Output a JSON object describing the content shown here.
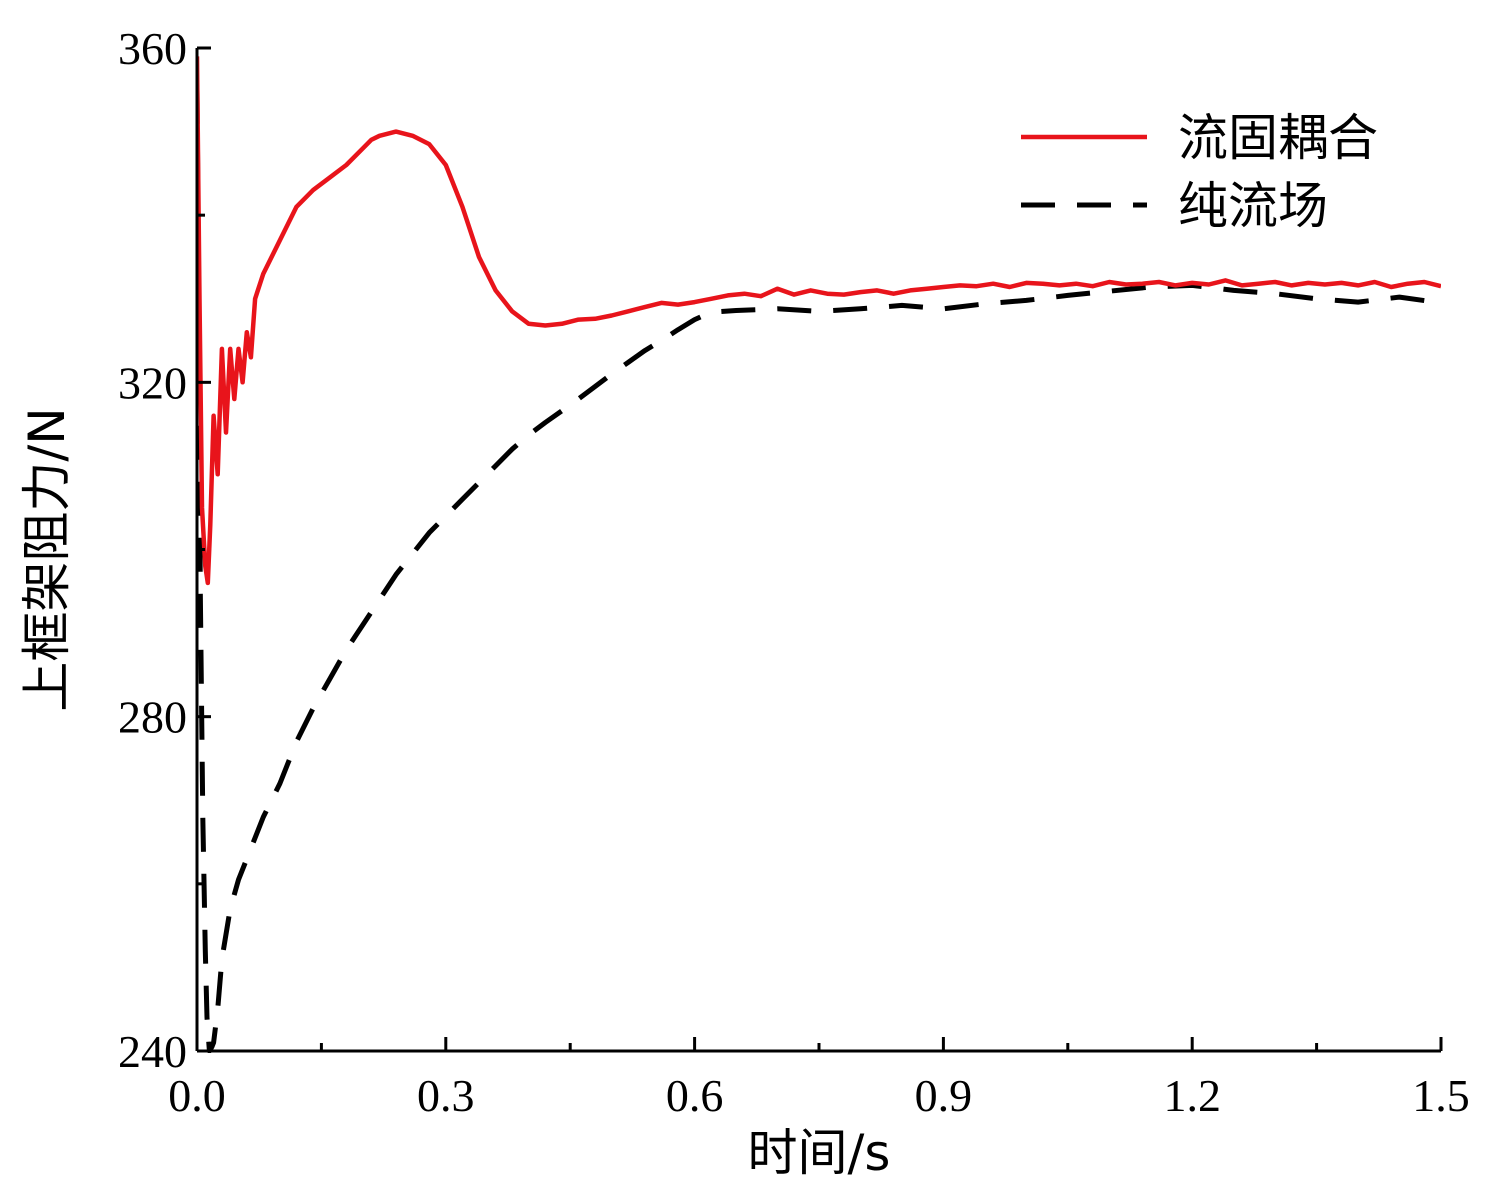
{
  "chart_data": {
    "type": "line",
    "xlabel": "时间/s",
    "ylabel": "上框架阻力/N",
    "xlim": [
      0,
      1.5
    ],
    "ylim": [
      240,
      360
    ],
    "xticks": [
      0.0,
      0.3,
      0.6,
      0.9,
      1.2,
      1.5
    ],
    "xtick_labels": [
      "0.0",
      "0.3",
      "0.6",
      "0.9",
      "1.2",
      "1.5"
    ],
    "yticks": [
      240,
      280,
      320,
      360
    ],
    "ytick_labels": [
      "240",
      "280",
      "320",
      "360"
    ],
    "grid": false,
    "legend_position": "top-right",
    "series": [
      {
        "name": "流固耦合",
        "color": "#e8141b",
        "style": "solid",
        "x": [
          0.0,
          0.003,
          0.006,
          0.01,
          0.013,
          0.016,
          0.02,
          0.025,
          0.03,
          0.035,
          0.04,
          0.045,
          0.05,
          0.055,
          0.06,
          0.065,
          0.07,
          0.08,
          0.09,
          0.1,
          0.11,
          0.12,
          0.14,
          0.16,
          0.18,
          0.2,
          0.21,
          0.22,
          0.24,
          0.26,
          0.28,
          0.3,
          0.32,
          0.34,
          0.36,
          0.38,
          0.4,
          0.42,
          0.44,
          0.46,
          0.48,
          0.5,
          0.52,
          0.54,
          0.56,
          0.58,
          0.6,
          0.62,
          0.64,
          0.66,
          0.68,
          0.7,
          0.72,
          0.74,
          0.76,
          0.78,
          0.8,
          0.82,
          0.84,
          0.86,
          0.88,
          0.9,
          0.92,
          0.94,
          0.96,
          0.98,
          1.0,
          1.02,
          1.04,
          1.06,
          1.08,
          1.1,
          1.12,
          1.14,
          1.16,
          1.18,
          1.2,
          1.22,
          1.24,
          1.26,
          1.28,
          1.3,
          1.32,
          1.34,
          1.36,
          1.38,
          1.4,
          1.42,
          1.44,
          1.46,
          1.48,
          1.5
        ],
        "values": [
          359,
          330,
          305,
          298,
          296,
          303,
          316,
          309,
          324,
          314,
          324,
          318,
          324,
          320,
          326,
          323,
          330,
          333,
          335,
          337,
          339,
          341,
          343,
          344.5,
          346,
          348,
          349,
          349.5,
          350,
          349.5,
          348.5,
          346,
          341,
          335,
          331,
          328.5,
          327,
          326.8,
          327,
          327.5,
          327.6,
          328,
          328.5,
          329,
          329.5,
          329.3,
          329.6,
          330,
          330.4,
          330.6,
          330.3,
          331.2,
          330.5,
          331,
          330.6,
          330.5,
          330.8,
          331,
          330.6,
          331,
          331.2,
          331.4,
          331.6,
          331.5,
          331.8,
          331.4,
          331.9,
          331.8,
          331.6,
          331.8,
          331.5,
          332,
          331.7,
          331.8,
          332,
          331.6,
          331.9,
          331.7,
          332.2,
          331.6,
          331.8,
          332,
          331.6,
          331.9,
          331.7,
          331.9,
          331.6,
          332,
          331.4,
          331.8,
          332,
          331.5
        ]
      },
      {
        "name": "纯流场",
        "color": "#000000",
        "style": "dashed",
        "x": [
          0.0,
          0.002,
          0.004,
          0.007,
          0.01,
          0.012,
          0.015,
          0.018,
          0.02,
          0.025,
          0.03,
          0.04,
          0.05,
          0.06,
          0.08,
          0.1,
          0.12,
          0.14,
          0.16,
          0.18,
          0.2,
          0.22,
          0.24,
          0.26,
          0.28,
          0.3,
          0.32,
          0.34,
          0.36,
          0.38,
          0.4,
          0.42,
          0.44,
          0.46,
          0.48,
          0.5,
          0.52,
          0.54,
          0.56,
          0.58,
          0.6,
          0.62,
          0.65,
          0.7,
          0.75,
          0.8,
          0.85,
          0.9,
          0.95,
          1.0,
          1.05,
          1.1,
          1.15,
          1.2,
          1.25,
          1.3,
          1.35,
          1.4,
          1.45,
          1.5
        ],
        "values": [
          355,
          330,
          295,
          268,
          252,
          244,
          240,
          240.5,
          241,
          245,
          251,
          257,
          260.5,
          263,
          268,
          272,
          277,
          281,
          284.5,
          288,
          291,
          294,
          297,
          299.5,
          302,
          304,
          306,
          308,
          310,
          312,
          313.7,
          315.2,
          316.6,
          318,
          319.5,
          321,
          322.4,
          323.8,
          325,
          326.3,
          327.5,
          328.4,
          328.6,
          328.8,
          328.5,
          328.8,
          329.2,
          328.8,
          329.4,
          329.8,
          330.4,
          330.9,
          331.4,
          331.6,
          331,
          330.6,
          330,
          329.6,
          330.2,
          329.5
        ]
      }
    ]
  }
}
